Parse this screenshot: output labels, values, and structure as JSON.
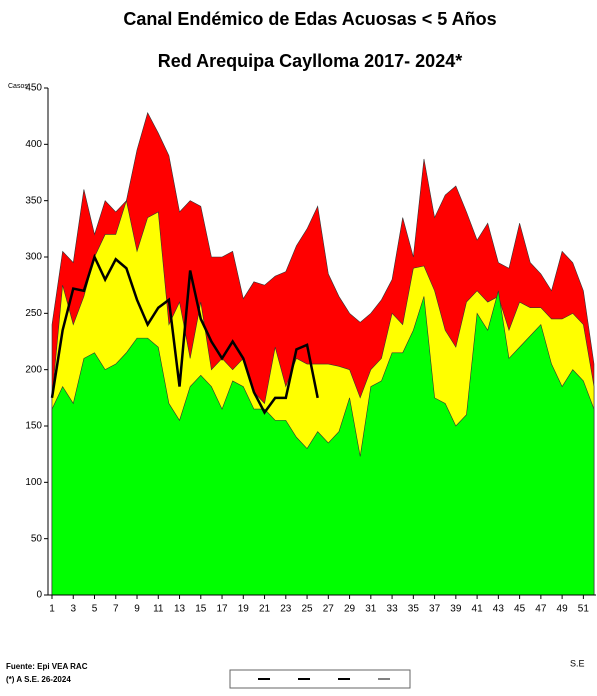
{
  "chart_data": {
    "type": "area",
    "title": "Canal Endémico de Edas Acuosas  < 5 Años",
    "subtitle": "Red Arequipa Caylloma 2017- 2024*",
    "y_label": "Casos",
    "x_label": "S.E",
    "source": "Fuente: Epi VEA RAC",
    "note": "(*) A S.E. 26-2024",
    "x": [
      1,
      2,
      3,
      4,
      5,
      6,
      7,
      8,
      9,
      10,
      11,
      12,
      13,
      14,
      15,
      16,
      17,
      18,
      19,
      20,
      21,
      22,
      23,
      24,
      25,
      26,
      27,
      28,
      29,
      30,
      31,
      32,
      33,
      34,
      35,
      36,
      37,
      38,
      39,
      40,
      41,
      42,
      43,
      44,
      45,
      46,
      47,
      48,
      49,
      50,
      51,
      52
    ],
    "xlim": [
      1,
      52
    ],
    "xticks": [
      1,
      3,
      5,
      7,
      9,
      11,
      13,
      15,
      17,
      19,
      21,
      23,
      25,
      27,
      29,
      31,
      33,
      35,
      37,
      39,
      41,
      43,
      45,
      47,
      49,
      51
    ],
    "ylim": [
      0,
      450
    ],
    "yticks": [
      0,
      50,
      100,
      150,
      200,
      250,
      300,
      350,
      400,
      450
    ],
    "series": [
      {
        "type": "area",
        "color": "#ff0000",
        "values": [
          240,
          305,
          295,
          360,
          320,
          350,
          340,
          350,
          395,
          428,
          410,
          390,
          340,
          350,
          345,
          300,
          300,
          305,
          263,
          278,
          275,
          283,
          287,
          310,
          325,
          345,
          285,
          265,
          250,
          242,
          250,
          262,
          280,
          335,
          300,
          387,
          335,
          355,
          363,
          340,
          315,
          330,
          295,
          290,
          330,
          295,
          285,
          270,
          305,
          295,
          270,
          205
        ]
      },
      {
        "type": "area",
        "color": "#ffff00",
        "values": [
          175,
          275,
          240,
          265,
          300,
          320,
          320,
          350,
          305,
          335,
          340,
          240,
          260,
          210,
          260,
          200,
          210,
          200,
          210,
          180,
          170,
          220,
          185,
          210,
          205,
          205,
          205,
          203,
          200,
          175,
          200,
          210,
          250,
          240,
          290,
          292,
          270,
          235,
          220,
          260,
          270,
          260,
          265,
          235,
          260,
          255,
          255,
          245,
          245,
          250,
          240,
          185
        ]
      },
      {
        "type": "area",
        "color": "#00ff00",
        "values": [
          165,
          185,
          170,
          210,
          215,
          200,
          205,
          215,
          228,
          228,
          220,
          170,
          155,
          185,
          195,
          185,
          165,
          190,
          185,
          165,
          165,
          155,
          155,
          140,
          130,
          145,
          135,
          145,
          175,
          123,
          185,
          190,
          215,
          215,
          235,
          265,
          175,
          170,
          150,
          160,
          250,
          235,
          270,
          210,
          220,
          230,
          240,
          205,
          185,
          200,
          190,
          165
        ]
      },
      {
        "type": "line",
        "color": "#000000",
        "values": [
          175,
          235,
          272,
          270,
          300,
          280,
          298,
          290,
          262,
          240,
          255,
          262,
          185,
          288,
          245,
          225,
          210,
          225,
          210,
          180,
          162,
          175,
          175,
          218,
          222,
          175,
          null,
          null,
          null,
          null,
          null,
          null,
          null,
          null,
          null,
          null,
          null,
          null,
          null,
          null,
          null,
          null,
          null,
          null,
          null,
          null,
          null,
          null,
          null,
          null,
          null,
          null
        ]
      }
    ]
  }
}
